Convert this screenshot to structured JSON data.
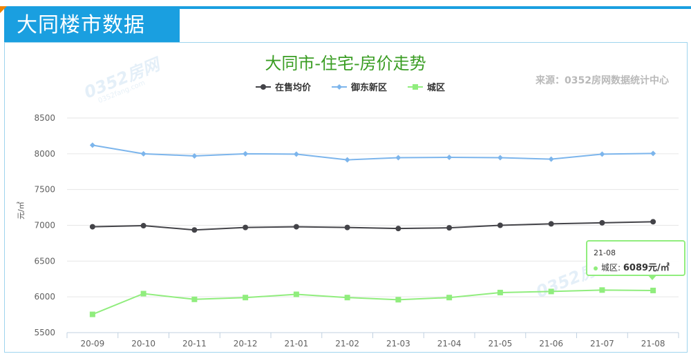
{
  "header": {
    "title": "大同楼市数据"
  },
  "source": "来源：0352房网数据统计中心",
  "watermark": {
    "text": "0352房网",
    "sub": "0352fang.com"
  },
  "tooltip": {
    "date": "21-08",
    "series": "城区",
    "value": "6089元/㎡"
  },
  "colors": {
    "accent": "#1a9fe0",
    "title": "#3a9d23",
    "series1": "#434348",
    "series2": "#7cb5ec",
    "series3": "#90ed7d"
  },
  "chart_data": {
    "type": "line",
    "title": "大同市-住宅-房价走势",
    "ylabel": "元/㎡",
    "xlabel": "",
    "ylim": [
      5500,
      8500
    ],
    "yticks": [
      5500,
      6000,
      6500,
      7000,
      7500,
      8000,
      8500
    ],
    "categories": [
      "20-09",
      "20-10",
      "20-11",
      "20-12",
      "21-01",
      "21-02",
      "21-03",
      "21-04",
      "21-05",
      "21-06",
      "21-07",
      "21-08"
    ],
    "legend_position": "top-center",
    "grid": true,
    "series": [
      {
        "name": "在售均价",
        "color": "#434348",
        "marker": "circle",
        "values": [
          6980,
          6995,
          6935,
          6970,
          6980,
          6970,
          6955,
          6965,
          7000,
          7020,
          7035,
          7050
        ]
      },
      {
        "name": "御东新区",
        "color": "#7cb5ec",
        "marker": "diamond",
        "values": [
          8120,
          8000,
          7970,
          8000,
          7995,
          7915,
          7945,
          7950,
          7945,
          7925,
          7995,
          8005
        ]
      },
      {
        "name": "城区",
        "color": "#90ed7d",
        "marker": "square",
        "values": [
          5755,
          6045,
          5965,
          5990,
          6035,
          5990,
          5960,
          5990,
          6060,
          6075,
          6095,
          6089
        ]
      }
    ]
  }
}
